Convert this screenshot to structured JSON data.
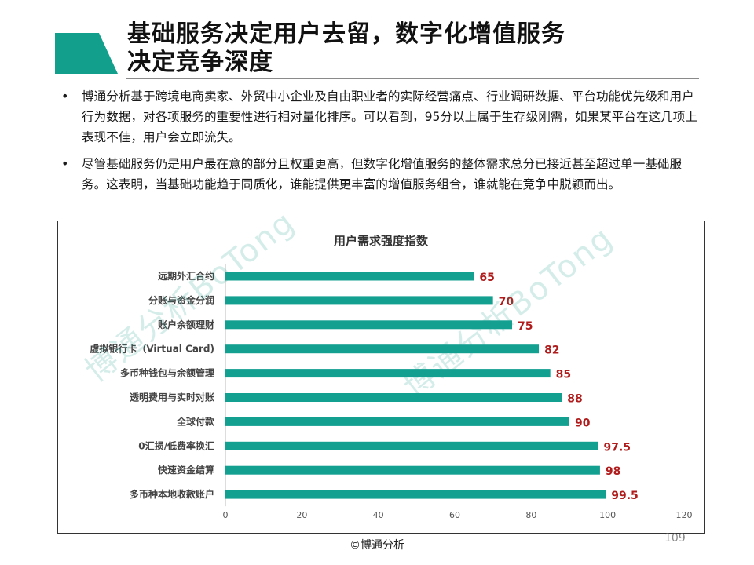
{
  "slide": {
    "title_line1": "基础服务决定用户去留，数字化增值服务",
    "title_line2": "决定竞争深度",
    "accent_color": "#12a08c",
    "bullets": [
      "博通分析基于跨境电商卖家、外贸中小企业及自由职业者的实际经营痛点、行业调研数据、平台功能优先级和用户行为数据，对各项服务的重要性进行相对量化排序。可以看到，95分以上属于生存级刚需，如果某平台在这几项上表现不佳，用户会立即流失。",
      "尽管基础服务仍是用户最在意的部分且权重更高，但数字化增值服务的整体需求总分已接近甚至超过单一基础服务。这表明，当基础功能趋于同质化，谁能提供更丰富的增值服务组合，谁就能在竞争中脱颖而出。"
    ],
    "bullet_glyph": "•",
    "watermark_text": "博通分析BoTong",
    "footer": "©博通分析",
    "page_number": "109"
  },
  "chart_data": {
    "type": "bar",
    "orientation": "horizontal",
    "title": "用户需求强度指数",
    "categories": [
      "远期外汇合约",
      "分账与资金分润",
      "账户余额理财",
      "虚拟银行卡（Virtual Card)",
      "多币种钱包与余额管理",
      "透明费用与实时对账",
      "全球付款",
      "0汇损/低费率换汇",
      "快速资金结算",
      "多币种本地收款账户"
    ],
    "values": [
      65,
      70,
      75,
      82,
      85,
      88,
      90,
      97.5,
      98,
      99.5
    ],
    "value_labels": [
      "65",
      "70",
      "75",
      "82",
      "85",
      "88",
      "90",
      "97.5",
      "98",
      "99.5"
    ],
    "xlim": [
      0,
      120
    ],
    "x_ticks": [
      "0",
      "20",
      "40",
      "60",
      "80",
      "100",
      "120"
    ],
    "grid": false,
    "legend": "none",
    "bar_color": "#14a091",
    "label_color": "#b01c1c"
  }
}
